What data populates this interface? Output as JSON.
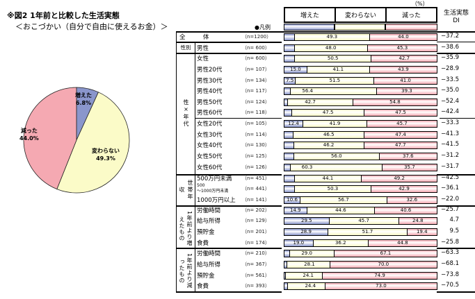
{
  "title": "※図2 1年前と比較した生活実態",
  "subtitle": "＜おこづかい（自分で自由に使えるお金）＞",
  "unit": "（%）",
  "legend_label": "●凡例",
  "di_header": "生活実態 DI",
  "colors": {
    "inc": "#8a96cc",
    "same": "#fbfbc8",
    "dec": "#f5a9b2"
  },
  "chart_data": [
    {
      "type": "pie",
      "slices": [
        {
          "name": "増えた",
          "value": 6.8,
          "label": "6.8%"
        },
        {
          "name": "変わらない",
          "value": 49.3,
          "label": "49.3%"
        },
        {
          "name": "減った",
          "value": 44.0,
          "label": "44.0%"
        }
      ]
    },
    {
      "type": "bar",
      "stacked": true,
      "horizontal": true,
      "categories_header": [
        "増えた",
        "変わらない",
        "減った"
      ],
      "groups": [
        "",
        "性別",
        "性×年代",
        "世帯年収",
        "1年前より増えたもの",
        "1年前より減ったもの"
      ],
      "rows": [
        {
          "label": "全　体",
          "n": "（n=1200）",
          "g": 0,
          "v": [
            6.8,
            49.3,
            44.0
          ],
          "t": [
            "6.8",
            "49.3",
            "44.0"
          ],
          "di": "−37.2"
        },
        {
          "label": "男性",
          "n": "（n= 600）",
          "g": 1,
          "v": [
            6.7,
            48.0,
            45.3
          ],
          "t": [
            "6.7",
            "48.0",
            "45.3"
          ],
          "di": "−38.6"
        },
        {
          "label": "女性",
          "n": "（n= 600）",
          "g": 1,
          "v": [
            6.8,
            50.5,
            42.7
          ],
          "t": [
            "6.8",
            "50.5",
            "42.7"
          ],
          "di": "−35.9"
        },
        {
          "label": "男性20代",
          "n": "（n= 107）",
          "g": 2,
          "v": [
            15.0,
            41.1,
            43.9
          ],
          "t": [
            "15.0",
            "41.1",
            "43.9"
          ],
          "di": "−28.9"
        },
        {
          "label": "男性30代",
          "n": "（n= 134）",
          "g": 2,
          "v": [
            7.5,
            51.5,
            41.0
          ],
          "t": [
            "7.5",
            "51.5",
            "41.0"
          ],
          "di": "−33.5"
        },
        {
          "label": "男性40代",
          "n": "（n= 117）",
          "g": 2,
          "v": [
            4.3,
            56.4,
            39.3
          ],
          "t": [
            "4.3",
            "56.4",
            "39.3"
          ],
          "di": "−35.0"
        },
        {
          "label": "男性50代",
          "n": "（n= 124）",
          "g": 2,
          "v": [
            2.4,
            42.7,
            54.8
          ],
          "t": [
            "2.4",
            "42.7",
            "54.8"
          ],
          "di": "−52.4"
        },
        {
          "label": "男性60代",
          "n": "（n= 118）",
          "g": 2,
          "v": [
            5.1,
            47.5,
            47.5
          ],
          "t": [
            "5.1",
            "47.5",
            "47.5"
          ],
          "di": "−42.4"
        },
        {
          "label": "女性20代",
          "n": "（n= 105）",
          "g": 2,
          "v": [
            12.4,
            41.9,
            45.7
          ],
          "t": [
            "12.4",
            "41.9",
            "45.7"
          ],
          "di": "−33.3"
        },
        {
          "label": "女性30代",
          "n": "（n= 114）",
          "g": 2,
          "v": [
            6.1,
            46.5,
            47.4
          ],
          "t": [
            "6.1",
            "46.5",
            "47.4"
          ],
          "di": "−41.3"
        },
        {
          "label": "女性40代",
          "n": "（n= 130）",
          "g": 2,
          "v": [
            6.2,
            46.2,
            47.7
          ],
          "t": [
            "6.2",
            "46.2",
            "47.7"
          ],
          "di": "−41.5"
        },
        {
          "label": "女性50代",
          "n": "（n= 125）",
          "g": 2,
          "v": [
            6.4,
            56.0,
            37.6
          ],
          "t": [
            "6.4",
            "56.0",
            "37.6"
          ],
          "di": "−31.2"
        },
        {
          "label": "女性60代",
          "n": "（n= 126）",
          "g": 2,
          "v": [
            4.0,
            60.3,
            35.7
          ],
          "t": [
            "4.0",
            "60.3",
            "35.7"
          ],
          "di": "−31.7"
        },
        {
          "label": "500万円未満",
          "n": "（n= 451）",
          "g": 3,
          "v": [
            6.7,
            44.1,
            49.2
          ],
          "t": [
            "6.7",
            "44.1",
            "49.2"
          ],
          "di": "−42.5"
        },
        {
          "label": "500 ～1000万円未満",
          "n": "（n= 441）",
          "g": 3,
          "v": [
            6.8,
            50.3,
            42.9
          ],
          "t": [
            "6.8",
            "50.3",
            "42.9"
          ],
          "di": "−36.1"
        },
        {
          "label": "1000万円以上",
          "n": "（n= 141）",
          "g": 3,
          "v": [
            10.6,
            56.7,
            32.6
          ],
          "t": [
            "10.6",
            "56.7",
            "32.6"
          ],
          "di": "−22.0"
        },
        {
          "label": "労働時間",
          "n": "（n= 202）",
          "g": 4,
          "v": [
            14.9,
            44.6,
            40.6
          ],
          "t": [
            "14.9",
            "44.6",
            "40.6"
          ],
          "di": "−25.7"
        },
        {
          "label": "給与所得",
          "n": "（n= 129）",
          "g": 4,
          "v": [
            29.5,
            45.7,
            24.8
          ],
          "t": [
            "29.5",
            "45.7",
            "24.8"
          ],
          "di": "4.7"
        },
        {
          "label": "預貯金",
          "n": "（n= 201）",
          "g": 4,
          "v": [
            28.9,
            51.7,
            19.4
          ],
          "t": [
            "28.9",
            "51.7",
            "19.4"
          ],
          "di": "9.5"
        },
        {
          "label": "食費",
          "n": "（n= 174）",
          "g": 4,
          "v": [
            19.0,
            36.2,
            44.8
          ],
          "t": [
            "19.0",
            "36.2",
            "44.8"
          ],
          "di": "−25.8"
        },
        {
          "label": "労働時間",
          "n": "（n= 210）",
          "g": 5,
          "v": [
            3.8,
            29.0,
            67.1
          ],
          "t": [
            "3.8",
            "29.0",
            "67.1"
          ],
          "di": "−63.3"
        },
        {
          "label": "給与所得",
          "n": "（n= 367）",
          "g": 5,
          "v": [
            1.9,
            28.1,
            70.0
          ],
          "t": [
            "1.9",
            "28.1",
            "70.0"
          ],
          "di": "−68.1"
        },
        {
          "label": "預貯金",
          "n": "（n= 561）",
          "g": 5,
          "v": [
            1.1,
            24.1,
            74.9
          ],
          "t": [
            "1.1",
            "24.1",
            "74.9"
          ],
          "di": "−73.8"
        },
        {
          "label": "食費",
          "n": "（n= 393）",
          "g": 5,
          "v": [
            2.5,
            24.4,
            73.0
          ],
          "t": [
            "2.5",
            "24.4",
            "73.0"
          ],
          "di": "−70.5"
        }
      ]
    }
  ]
}
